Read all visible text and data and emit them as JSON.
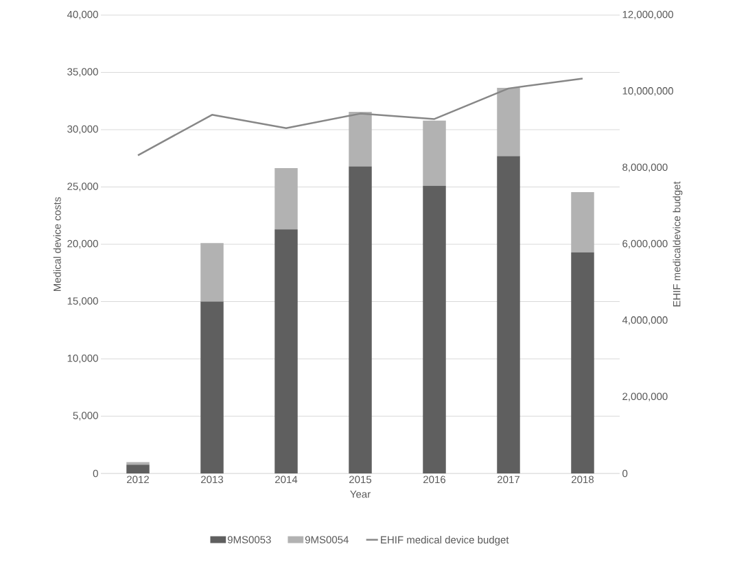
{
  "chart_data": {
    "type": "bar",
    "stacked": true,
    "xlabel": "Year",
    "ylabel": "Medical device costs",
    "y2label": "EHIF medicaldevice budget",
    "categories": [
      "2012",
      "2013",
      "2014",
      "2015",
      "2016",
      "2017",
      "2018"
    ],
    "series": [
      {
        "name": "9MS0053",
        "color": "#5f5f5f",
        "values": [
          760,
          15000,
          21300,
          26800,
          25100,
          27700,
          19300
        ]
      },
      {
        "name": "9MS0054",
        "color": "#b2b2b2",
        "values": [
          230,
          5100,
          5350,
          4750,
          5700,
          5950,
          5250
        ]
      },
      {
        "name": "EHIF medical device budget",
        "type": "line",
        "axis": "y2",
        "color": "#878787",
        "values": [
          8330000,
          9390000,
          9040000,
          9420000,
          9280000,
          10080000,
          10340000
        ]
      }
    ],
    "ylim": [
      0,
      40000
    ],
    "yticks": [
      {
        "value": 0,
        "label": "0"
      },
      {
        "value": 5000,
        "label": "5,000"
      },
      {
        "value": 10000,
        "label": "10,000"
      },
      {
        "value": 15000,
        "label": "15,000"
      },
      {
        "value": 20000,
        "label": "20,000"
      },
      {
        "value": 25000,
        "label": "25,000"
      },
      {
        "value": 30000,
        "label": "30,000"
      },
      {
        "value": 35000,
        "label": "35,000"
      },
      {
        "value": 40000,
        "label": "40,000"
      }
    ],
    "y2lim": [
      0,
      12000000
    ],
    "y2ticks": [
      {
        "value": 0,
        "label": "0"
      },
      {
        "value": 2000000,
        "label": "2,000,000"
      },
      {
        "value": 4000000,
        "label": "4,000,000"
      },
      {
        "value": 6000000,
        "label": "6,000,000"
      },
      {
        "value": 8000000,
        "label": "8,000,000"
      },
      {
        "value": 10000000,
        "label": "10,000,000"
      },
      {
        "value": 12000000,
        "label": "12,000,000"
      }
    ],
    "grid": "y",
    "legend": "bottom",
    "marker": "none",
    "line_style": "solid"
  }
}
